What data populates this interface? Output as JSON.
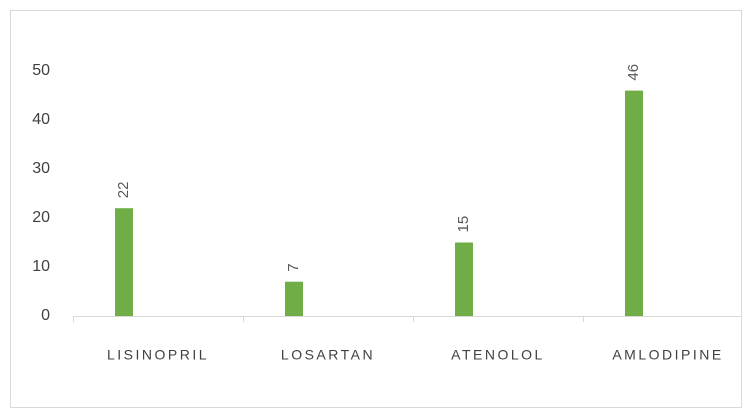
{
  "chart_data": {
    "type": "bar",
    "categories": [
      "LISINOPRIL",
      "LOSARTAN",
      "ATENOLOL",
      "AMLODIPINE"
    ],
    "values": [
      22,
      7,
      15,
      46
    ],
    "color": "#70ad47",
    "ylim": [
      0,
      50
    ],
    "yticks": [
      0,
      10,
      20,
      30,
      40,
      50
    ],
    "grid": false
  }
}
